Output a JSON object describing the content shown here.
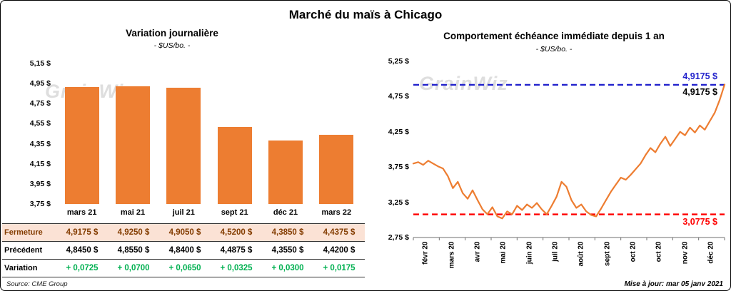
{
  "title": "Marché du maïs à Chicago",
  "watermark": "GrainWiz",
  "source": "Source: CME Group",
  "updated": "Mise à jour: mar 05 janv 2021",
  "colors": {
    "bar": "#ED7D31",
    "line": "#ED7D31",
    "high_ref": "#2222CC",
    "low_ref": "#FF0000",
    "close_row_bg": "#FBE2D5",
    "close_row_text": "#833C00",
    "variation_text": "#00B050"
  },
  "chart_data": [
    {
      "type": "bar",
      "title": "Variation journalière",
      "subtitle": "- $US/bo. -",
      "categories": [
        "mars 21",
        "mai 21",
        "juil 21",
        "sept 21",
        "déc 21",
        "mars 22"
      ],
      "values": [
        4.9175,
        4.925,
        4.905,
        4.52,
        4.385,
        4.4375
      ],
      "ylim": [
        3.75,
        5.15
      ],
      "yticks": [
        "5,15 $",
        "4,95 $",
        "4,75 $",
        "4,55 $",
        "4,35 $",
        "4,15 $",
        "3,95 $",
        "3,75 $"
      ],
      "grid": false,
      "table": {
        "rows": [
          {
            "label": "Fermeture",
            "style": "close",
            "values": [
              "4,9175  $",
              "4,9250  $",
              "4,9050  $",
              "4,5200  $",
              "4,3850  $",
              "4,4375  $"
            ]
          },
          {
            "label": "Précédent",
            "style": "previous",
            "values": [
              "4,8450  $",
              "4,8550  $",
              "4,8400  $",
              "4,4875  $",
              "4,3550  $",
              "4,4200  $"
            ]
          },
          {
            "label": "Variation",
            "style": "variation",
            "values": [
              "+ 0,0725",
              "+ 0,0700",
              "+ 0,0650",
              "+ 0,0325",
              "+ 0,0300",
              "+ 0,0175"
            ]
          }
        ]
      }
    },
    {
      "type": "line",
      "title": "Comportement échéance immédiate depuis 1 an",
      "subtitle": "- $US/bo. -",
      "ylim": [
        2.75,
        5.25
      ],
      "yticks": [
        "5,25 $",
        "4,75 $",
        "4,25 $",
        "3,75 $",
        "3,25 $",
        "2,75 $"
      ],
      "xticks": [
        "févr 20",
        "mars 20",
        "avr 20",
        "mai 20",
        "juin 20",
        "juil 20",
        "août 20",
        "sept 20",
        "oct 20",
        "oct 20",
        "nov 20",
        "déc 20"
      ],
      "grid": false,
      "current_label": "4,9175 $",
      "ref_lines": [
        {
          "value": 4.9175,
          "label": "4,9175 $",
          "color": "#2222CC",
          "style": "dashed"
        },
        {
          "value": 3.0775,
          "label": "3,0775 $",
          "color": "#FF0000",
          "style": "dashed"
        }
      ],
      "series": [
        3.8,
        3.82,
        3.78,
        3.84,
        3.8,
        3.76,
        3.73,
        3.62,
        3.45,
        3.54,
        3.38,
        3.3,
        3.42,
        3.28,
        3.15,
        3.08,
        3.18,
        3.05,
        3.02,
        3.12,
        3.08,
        3.2,
        3.14,
        3.22,
        3.17,
        3.24,
        3.15,
        3.08,
        3.2,
        3.33,
        3.54,
        3.47,
        3.28,
        3.17,
        3.22,
        3.12,
        3.07,
        3.05,
        3.16,
        3.28,
        3.4,
        3.5,
        3.6,
        3.57,
        3.64,
        3.72,
        3.8,
        3.92,
        4.02,
        3.96,
        4.08,
        4.18,
        4.05,
        4.15,
        4.25,
        4.2,
        4.31,
        4.24,
        4.34,
        4.28,
        4.4,
        4.52,
        4.7,
        4.92
      ]
    }
  ]
}
